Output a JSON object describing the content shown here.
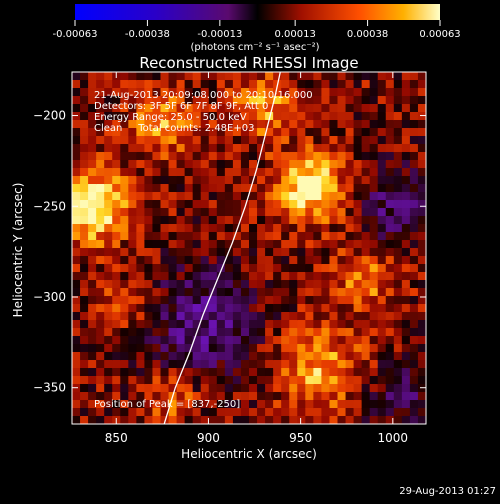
{
  "chart_data": {
    "type": "heatmap",
    "title": "Reconstructed RHESSI Image",
    "xlabel": "Heliocentric X (arcsec)",
    "ylabel": "Heliocentric Y (arcsec)",
    "xlim": [
      826,
      1018
    ],
    "ylim": [
      -370,
      -176
    ],
    "x_ticks": [
      850,
      900,
      950,
      1000
    ],
    "y_ticks": [
      -200,
      -250,
      -300,
      -350
    ],
    "x_tick_labels": [
      "850",
      "900",
      "950",
      "1000"
    ],
    "y_tick_labels": [
      "−200",
      "−250",
      "−300",
      "−350"
    ],
    "colorbar": {
      "tick_values": [
        -0.00063,
        -0.00038,
        -0.00013,
        0.00013,
        0.00038,
        0.00063
      ],
      "tick_labels": [
        "-0.00063",
        "-0.00038",
        "-0.00013",
        "0.00013",
        "0.00038",
        "0.00063"
      ],
      "unit_label": "(photons cm⁻² s⁻¹ asec⁻²)",
      "range": [
        -0.00063,
        0.00063
      ]
    },
    "annotations": [
      "21-Aug-2013 20:09:08.000 to 20:10:16.000",
      "Detectors: 3F 5F 6F 7F 8F 9F, Att 0",
      "Energy Range: 25.0 - 50.0 keV",
      "Clean     Total counts: 2.48E+03"
    ],
    "peak_label": "Position of Peak = [837,-250]",
    "limb_curve": [
      [
        876,
        -370
      ],
      [
        882,
        -350
      ],
      [
        890,
        -330
      ],
      [
        897,
        -310
      ],
      [
        905,
        -290
      ],
      [
        913,
        -270
      ],
      [
        920,
        -250
      ],
      [
        926,
        -230
      ],
      [
        931,
        -210
      ],
      [
        936,
        -190
      ],
      [
        939,
        -176
      ]
    ],
    "grid": false
  },
  "footer": {
    "timestamp": "29-Aug-2013 01:27"
  },
  "colors": {
    "background": "#000000",
    "text": "#ffffff",
    "limb": "#ffffff"
  }
}
